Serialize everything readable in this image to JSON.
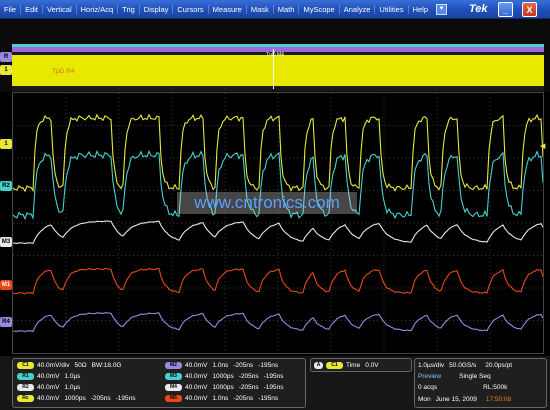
{
  "menu": {
    "items": [
      "File",
      "Edit",
      "Vertical",
      "Horiz/Acq",
      "Trig",
      "Display",
      "Cursors",
      "Measure",
      "Mask",
      "Math",
      "MyScope",
      "Analyze",
      "Utilities",
      "Help"
    ],
    "brand": "Tek",
    "minimize": "_",
    "close": "X"
  },
  "overview": {
    "label": "TpD R4",
    "selection_label": "TpD M4"
  },
  "markers": {
    "ov_r": "R",
    "ov_1": "1",
    "ch1": "1",
    "ch2": "R2",
    "m3": "M3",
    "m1": "M1",
    "r4": "R4"
  },
  "watermark": "www.cntronics.com",
  "readouts": {
    "ch1": {
      "badge": "C1",
      "scale": "40.0mV/div",
      "imp": "50Ω",
      "bw": "BW:18.0G"
    },
    "r1": {
      "badge": "R1",
      "scale": "40.0mV",
      "time": "1.0µs"
    },
    "r2": {
      "badge": "R2",
      "scale": "40.0mV",
      "time": "1.0µs"
    },
    "rc": {
      "badge": "Rc",
      "scale": "40.0mV",
      "time": "1000ps",
      "a": "-205ns",
      "b": "-195ns"
    },
    "m2": {
      "badge": "M2",
      "scale": "40.0mV",
      "time": "1.0ns",
      "a": "-205ns",
      "b": "-195ns"
    },
    "m3": {
      "badge": "M3",
      "scale": "40.0mV",
      "time": "1000ps",
      "a": "-205ns",
      "b": "-195ns"
    },
    "m4": {
      "badge": "M4",
      "scale": "40.0mV",
      "time": "1000ps",
      "a": "-205ns",
      "b": "-195ns"
    },
    "m5": {
      "badge": "M5",
      "scale": "40.0mV",
      "time": "1.0ns",
      "a": "-205ns",
      "b": "-195ns"
    },
    "trigger": {
      "a_badge": "A",
      "ch_badge": "C1",
      "label": "Time",
      "level": "0.0V"
    },
    "timebase": {
      "scale": "1.0µs/div",
      "rate": "50.0GS/s",
      "res": "20.0ps/pt",
      "mode": "Preview",
      "seq": "Single Seq",
      "acqs": "0 acqs",
      "rl": "RL:500k",
      "day": "Mon",
      "date": "June 15, 2009",
      "clock": "17:50:08"
    }
  },
  "colors": {
    "ch1": "#e8e83a",
    "ch2": "#48d0d0",
    "m3": "#e8e8e8",
    "m1": "#e84818",
    "r4": "#9c88e0",
    "grid": "#3a3a3a"
  }
}
